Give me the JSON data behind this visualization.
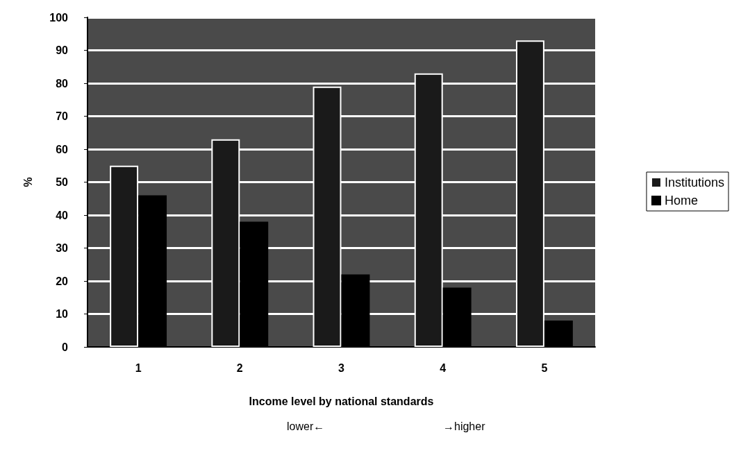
{
  "chart_data": {
    "type": "bar",
    "categories": [
      "1",
      "2",
      "3",
      "4",
      "5"
    ],
    "series": [
      {
        "name": "Institutions",
        "color": "#1a1a1a",
        "values": [
          55,
          63,
          79,
          83,
          93
        ]
      },
      {
        "name": "Home",
        "color": "#000000",
        "values": [
          46,
          38,
          22,
          18,
          8
        ]
      }
    ],
    "xlabel": "Income level by national standards",
    "ylabel": "%",
    "annotations": [
      "lower←",
      "→higher"
    ],
    "ylim": [
      0,
      100
    ],
    "yticks": [
      0,
      10,
      20,
      30,
      40,
      50,
      60,
      70,
      80,
      90,
      100
    ],
    "grid": "y",
    "legend": "right"
  }
}
